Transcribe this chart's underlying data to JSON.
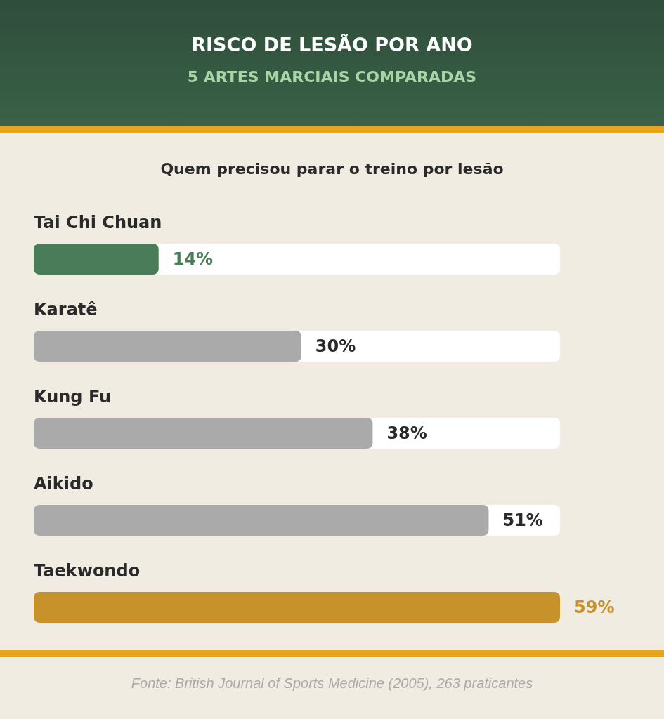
{
  "chart_data": {
    "type": "bar",
    "orientation": "horizontal",
    "title": "RISCO DE LESÃO POR ANO",
    "subtitle": "5 ARTES MARCIAIS COMPARADAS",
    "annotations": [
      "Quem precisou parar o treino por lesão",
      "Fonte: British Journal of Sports Medicine (2005), 263 praticantes"
    ],
    "categories": [
      "Tai Chi Chuan",
      "Karatê",
      "Kung Fu",
      "Aikido",
      "Taekwondo"
    ],
    "values": [
      14,
      30,
      38,
      51,
      59
    ],
    "colors": [
      "#4a7c59",
      "#aaaaaa",
      "#aaaaaa",
      "#aaaaaa",
      "#c8922a"
    ],
    "value_labels": [
      "14%",
      "30%",
      "38%",
      "51%",
      "59%"
    ],
    "xlim": [
      0,
      59
    ],
    "tick_labels": "y",
    "grid": false,
    "legend": false
  }
}
